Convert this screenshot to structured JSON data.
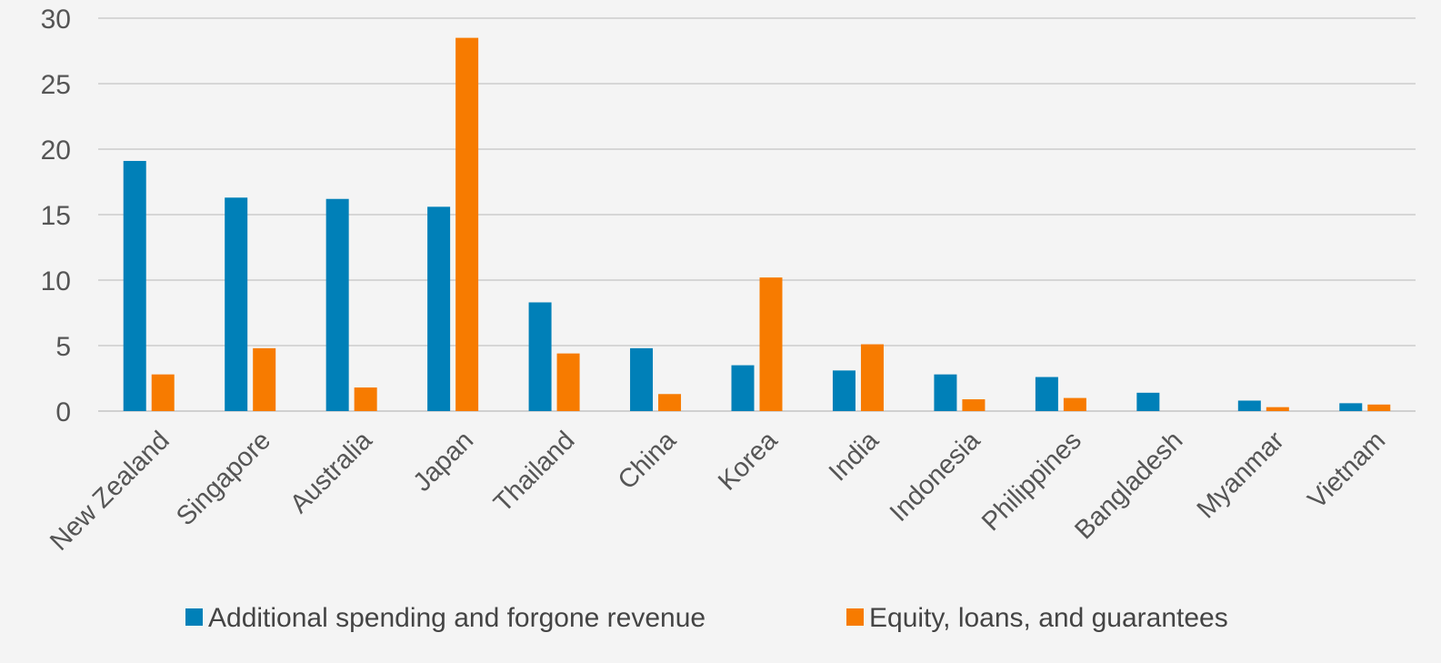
{
  "chart_data": {
    "type": "bar",
    "categories": [
      "New Zealand",
      "Singapore",
      "Australia",
      "Japan",
      "Thailand",
      "China",
      "Korea",
      "India",
      "Indonesia",
      "Philippines",
      "Bangladesh",
      "Myanmar",
      "Vietnam"
    ],
    "series": [
      {
        "name": "Additional spending and forgone revenue",
        "color": "#0080b8",
        "values": [
          19.1,
          16.3,
          16.2,
          15.6,
          8.3,
          4.8,
          3.5,
          3.1,
          2.8,
          2.6,
          1.4,
          0.8,
          0.6
        ]
      },
      {
        "name": "Equity, loans, and guarantees",
        "color": "#f77b00",
        "values": [
          2.8,
          4.8,
          1.8,
          28.5,
          4.4,
          1.3,
          10.2,
          5.1,
          0.9,
          1.0,
          0.0,
          0.3,
          0.5
        ]
      }
    ],
    "title": "",
    "xlabel": "",
    "ylabel": "",
    "ylim": [
      0,
      30
    ],
    "yticks": [
      "0",
      "5",
      "10",
      "15",
      "20",
      "25",
      "30"
    ],
    "grid": true,
    "legend_position": "bottom-center"
  }
}
